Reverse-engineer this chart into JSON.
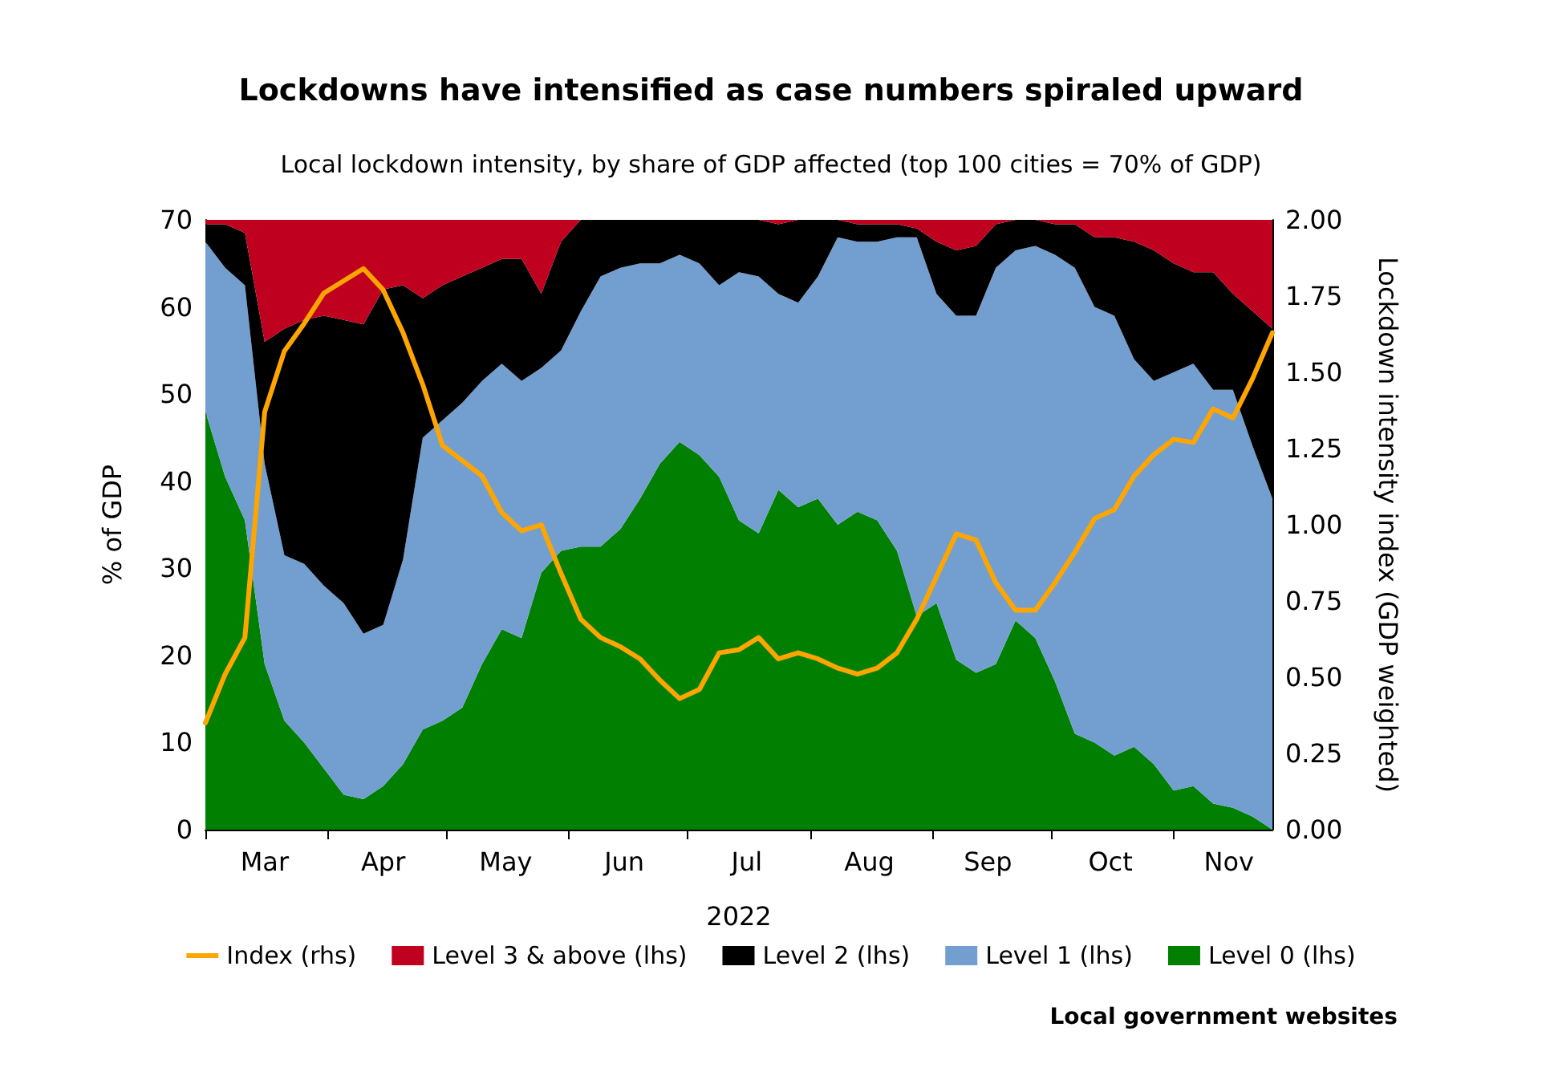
{
  "chart_data": {
    "type": "area",
    "title": "Lockdowns have intensified as case numbers spiraled upward",
    "subtitle": "Local lockdown intensity, by share of GDP affected (top 100 cities = 70% of GDP)",
    "xlabel": "2022",
    "ylabel": "% of GDP",
    "y2label": "Lockdown intensity index (GDP weighted)",
    "annotations": [
      "Local government websites"
    ],
    "stacked": true,
    "legend": "bottom",
    "grid": false,
    "x": [
      "2022-03-01",
      "2022-03-06",
      "2022-03-11",
      "2022-03-16",
      "2022-03-21",
      "2022-03-26",
      "2022-03-31",
      "2022-04-05",
      "2022-04-10",
      "2022-04-15",
      "2022-04-20",
      "2022-04-25",
      "2022-04-30",
      "2022-05-05",
      "2022-05-10",
      "2022-05-15",
      "2022-05-20",
      "2022-05-25",
      "2022-05-30",
      "2022-06-04",
      "2022-06-09",
      "2022-06-14",
      "2022-06-19",
      "2022-06-24",
      "2022-06-29",
      "2022-07-04",
      "2022-07-09",
      "2022-07-14",
      "2022-07-19",
      "2022-07-24",
      "2022-07-29",
      "2022-08-03",
      "2022-08-08",
      "2022-08-13",
      "2022-08-18",
      "2022-08-23",
      "2022-08-28",
      "2022-09-02",
      "2022-09-07",
      "2022-09-12",
      "2022-09-17",
      "2022-09-22",
      "2022-09-27",
      "2022-10-02",
      "2022-10-07",
      "2022-10-12",
      "2022-10-17",
      "2022-10-22",
      "2022-10-27",
      "2022-11-01",
      "2022-11-06",
      "2022-11-11",
      "2022-11-16",
      "2022-11-21",
      "2022-11-26"
    ],
    "xlim": [
      "2022-03-01",
      "2022-11-26"
    ],
    "xticks": [
      {
        "value": "2022-03-01",
        "label": null
      },
      {
        "value": "2022-03-16",
        "label": "Mar"
      },
      {
        "value": "2022-04-01",
        "label": null
      },
      {
        "value": "2022-04-15",
        "label": "Apr"
      },
      {
        "value": "2022-05-01",
        "label": null
      },
      {
        "value": "2022-05-16",
        "label": "May"
      },
      {
        "value": "2022-06-01",
        "label": null
      },
      {
        "value": "2022-06-15",
        "label": "Jun"
      },
      {
        "value": "2022-07-01",
        "label": null
      },
      {
        "value": "2022-07-16",
        "label": "Jul"
      },
      {
        "value": "2022-08-01",
        "label": null
      },
      {
        "value": "2022-08-16",
        "label": "Aug"
      },
      {
        "value": "2022-09-01",
        "label": null
      },
      {
        "value": "2022-09-15",
        "label": "Sep"
      },
      {
        "value": "2022-10-01",
        "label": null
      },
      {
        "value": "2022-10-16",
        "label": "Oct"
      },
      {
        "value": "2022-11-01",
        "label": null
      },
      {
        "value": "2022-11-15",
        "label": "Nov"
      }
    ],
    "ylim": [
      0,
      70
    ],
    "yticks": [
      0,
      10,
      20,
      30,
      40,
      50,
      60,
      70
    ],
    "y2lim": [
      0,
      2
    ],
    "y2ticks": [
      {
        "value": 0,
        "label": "0.00"
      },
      {
        "value": 0.25,
        "label": "0.25"
      },
      {
        "value": 0.5,
        "label": "0.50"
      },
      {
        "value": 0.75,
        "label": "0.75"
      },
      {
        "value": 1,
        "label": "1.00"
      },
      {
        "value": 1.25,
        "label": "1.25"
      },
      {
        "value": 1.5,
        "label": "1.50"
      },
      {
        "value": 1.75,
        "label": "1.75"
      },
      {
        "value": 2,
        "label": "2.00"
      }
    ],
    "series": [
      {
        "name": "Index (rhs)",
        "type": "line",
        "axis": "y2",
        "color": "#ffa500",
        "values": [
          0.35,
          0.51,
          0.63,
          1.37,
          1.57,
          1.66,
          1.76,
          1.8,
          1.84,
          1.77,
          1.63,
          1.46,
          1.26,
          1.21,
          1.16,
          1.04,
          0.98,
          1.0,
          0.84,
          0.69,
          0.63,
          0.6,
          0.56,
          0.49,
          0.43,
          0.46,
          0.58,
          0.59,
          0.63,
          0.56,
          0.58,
          0.56,
          0.53,
          0.51,
          0.53,
          0.58,
          0.69,
          0.83,
          0.97,
          0.95,
          0.81,
          0.72,
          0.72,
          0.81,
          0.91,
          1.02,
          1.05,
          1.16,
          1.23,
          1.28,
          1.27,
          1.38,
          1.35,
          1.48,
          1.63
        ]
      },
      {
        "name": "Level 0 (lhs)",
        "color": "#007f00",
        "values": [
          48,
          40.5,
          35.5,
          19,
          12.5,
          10,
          7,
          4,
          3.5,
          5,
          7.5,
          11.5,
          12.5,
          14,
          19,
          23,
          22,
          29.5,
          32,
          32.5,
          32.5,
          34.5,
          38,
          42,
          44.5,
          43,
          40.5,
          35.5,
          34,
          39,
          37,
          38,
          35,
          36.5,
          35.5,
          32,
          24.5,
          26,
          19.5,
          18,
          19,
          24,
          22,
          17,
          11,
          10,
          8.5,
          9.5,
          7.5,
          4.5,
          5,
          3,
          2.5,
          1.5,
          0
        ]
      },
      {
        "name": "Level 1 (lhs)",
        "color": "#739fd0",
        "values": [
          19.5,
          24,
          27,
          23,
          19,
          20.5,
          21,
          22,
          19,
          18.5,
          23.5,
          33.5,
          34.5,
          35,
          32.5,
          30.5,
          29.5,
          23.5,
          23,
          27,
          31,
          30,
          27,
          23,
          21.5,
          22,
          22,
          28.5,
          29.5,
          22.5,
          23.5,
          25.5,
          33,
          31,
          32,
          36,
          43.5,
          35.5,
          39.5,
          41,
          45.5,
          42.5,
          45,
          49,
          53.5,
          50,
          50.5,
          44.5,
          44,
          48,
          48.5,
          47.5,
          48,
          42.5,
          38
        ]
      },
      {
        "name": "Level 2 (lhs)",
        "color": "#000000",
        "values": [
          2,
          5,
          6,
          14,
          26,
          28,
          31,
          32.5,
          35.5,
          38.5,
          31.5,
          16,
          15.5,
          14.5,
          13,
          12,
          14,
          8.5,
          12.5,
          10.5,
          6.5,
          5.5,
          5,
          5,
          4,
          5,
          7.5,
          6,
          6.5,
          8,
          9.5,
          6.5,
          2,
          2,
          2,
          1.5,
          1,
          6,
          7.5,
          8,
          5,
          3.5,
          3,
          3.5,
          5,
          8,
          9,
          13.5,
          15,
          12.5,
          10.5,
          13.5,
          11,
          15.5,
          19.5
        ]
      },
      {
        "name": "Level 3 & above (lhs)",
        "color": "#c0001f",
        "values": [
          0.5,
          0.5,
          1.5,
          14,
          12.5,
          11.5,
          11,
          11.5,
          12,
          8,
          7.5,
          9,
          7.5,
          6.5,
          5.5,
          4.5,
          4.5,
          8.5,
          2.5,
          0,
          0,
          0,
          0,
          0,
          0,
          0,
          0,
          0,
          0,
          0.5,
          0,
          0,
          0,
          0.5,
          0.5,
          0.5,
          1,
          2.5,
          3.5,
          3,
          0.5,
          0,
          0,
          0.5,
          0.5,
          2,
          2,
          2.5,
          3.5,
          5,
          6,
          6,
          8.5,
          10.5,
          12.5
        ]
      }
    ]
  }
}
